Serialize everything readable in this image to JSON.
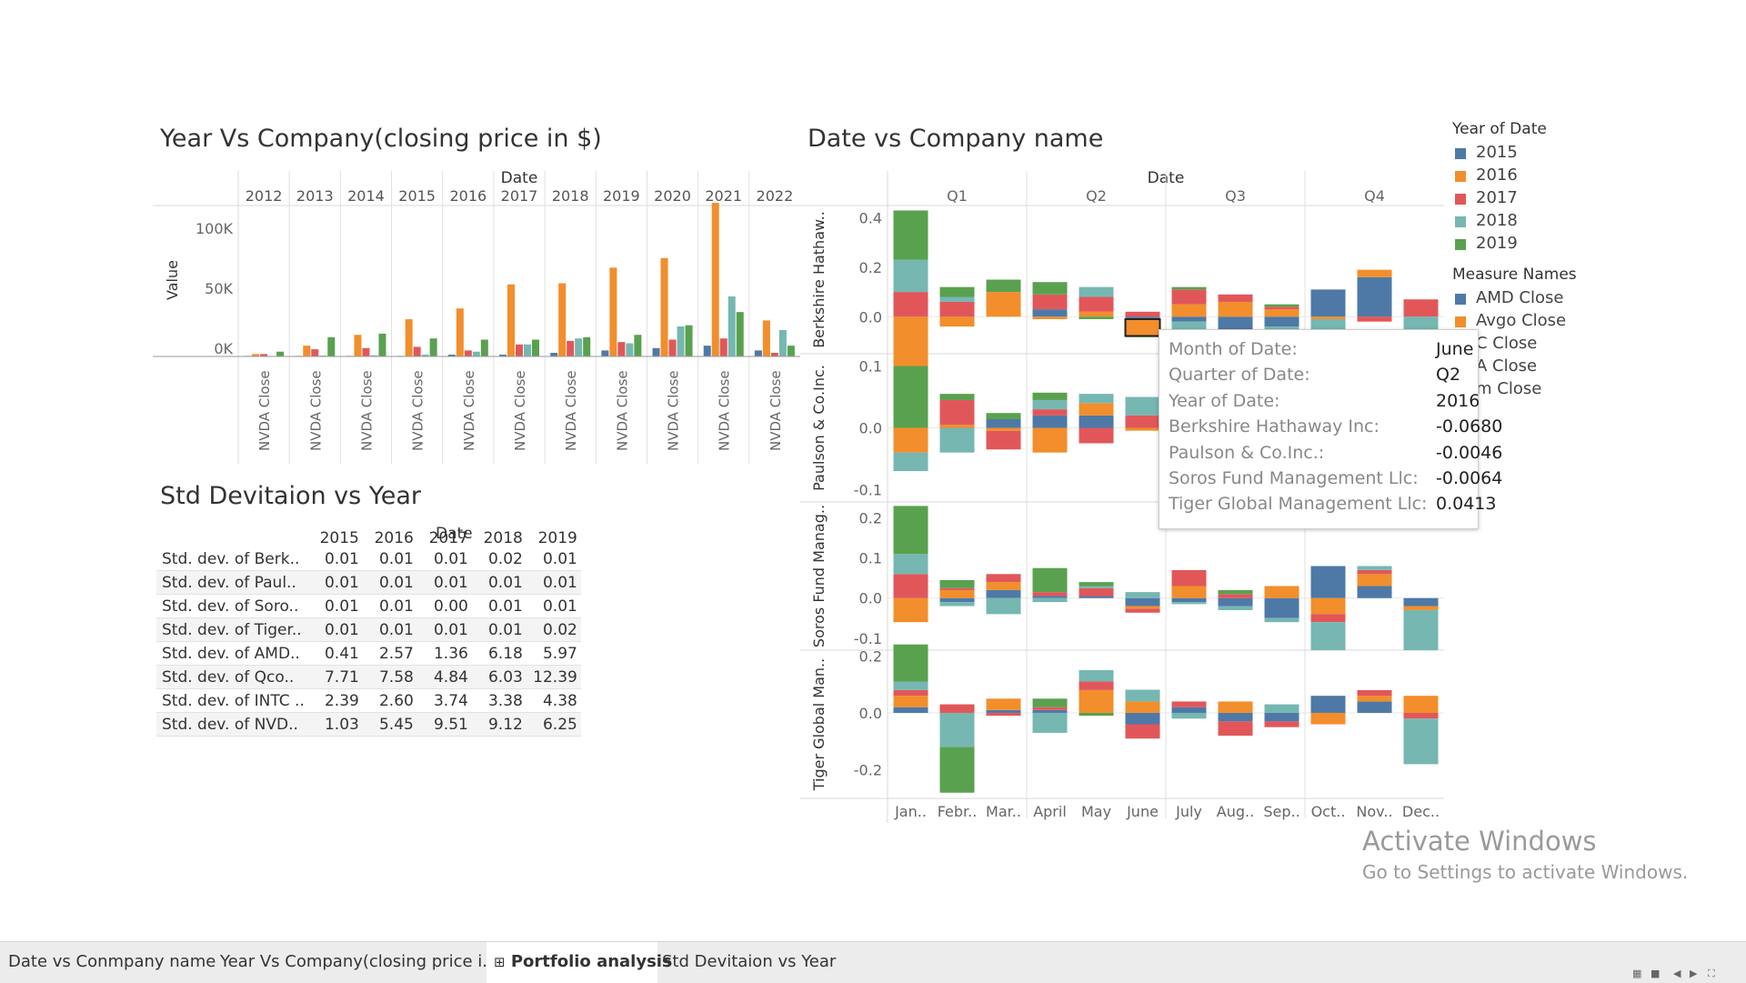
{
  "colors": {
    "y2015": "#4e79a7",
    "y2016": "#f28e2b",
    "y2017": "#e15759",
    "y2018": "#76b7b2",
    "y2019": "#59a14f",
    "amd": "#4e79a7",
    "avgo": "#f28e2b"
  },
  "left_chart": {
    "title": "Year Vs Company(closing price in $)",
    "col_header": "Date",
    "ylabel": "Value",
    "ticks": [
      "100K",
      "50K",
      "0K"
    ],
    "bar_label": "NVDA Close"
  },
  "right_chart": {
    "title": "Date vs Company name",
    "col_header": "Date"
  },
  "std_section": {
    "title": "Std Devitaion vs Year",
    "col_header": "Date"
  },
  "chart_data": [
    {
      "type": "bar",
      "title": "Year Vs Company(closing price in $)",
      "ylabel": "Value",
      "ylim": [
        0,
        130000
      ],
      "ytick_values": [
        0,
        50000,
        100000
      ],
      "categories": [
        "2012",
        "2013",
        "2014",
        "2015",
        "2016",
        "2017",
        "2018",
        "2019",
        "2020",
        "2021",
        "2022"
      ],
      "measures": [
        "AMD Close",
        "Avgo Close",
        "INTC Close",
        "NVDA Close",
        "Qcom Close"
      ],
      "series": [
        {
          "name": "AMD Close",
          "color": "#4e79a7",
          "values": [
            500,
            500,
            500,
            500,
            1500,
            1500,
            3000,
            5000,
            7000,
            9000,
            5000
          ]
        },
        {
          "name": "Avgo Close",
          "color": "#f28e2b",
          "values": [
            2000,
            9000,
            18000,
            31000,
            40000,
            60000,
            61000,
            74000,
            82000,
            128000,
            30000
          ]
        },
        {
          "name": "INTC Close",
          "color": "#e15759",
          "values": [
            2000,
            6000,
            7000,
            8000,
            5000,
            10000,
            13000,
            12000,
            14000,
            15000,
            3000
          ]
        },
        {
          "name": "NVDA Close",
          "color": "#76b7b2",
          "values": [
            400,
            800,
            1000,
            1500,
            4000,
            10000,
            15000,
            11000,
            25000,
            50000,
            22000
          ]
        },
        {
          "name": "Qcom Close",
          "color": "#59a14f",
          "values": [
            4000,
            16000,
            19000,
            15000,
            14000,
            14000,
            16000,
            18000,
            26000,
            37000,
            9000
          ]
        }
      ],
      "legend": "none",
      "grid": false
    },
    {
      "type": "table",
      "title": "Std Devitaion vs Year",
      "columns": [
        "2015",
        "2016",
        "2017",
        "2018",
        "2019"
      ],
      "rows": [
        {
          "label": "Std. dev. of Berk..",
          "values": [
            "0.01",
            "0.01",
            "0.01",
            "0.02",
            "0.01"
          ]
        },
        {
          "label": "Std. dev. of Paul..",
          "values": [
            "0.01",
            "0.01",
            "0.01",
            "0.01",
            "0.01"
          ]
        },
        {
          "label": "Std. dev. of Soro..",
          "values": [
            "0.01",
            "0.01",
            "0.00",
            "0.01",
            "0.01"
          ]
        },
        {
          "label": "Std. dev. of Tiger..",
          "values": [
            "0.01",
            "0.01",
            "0.01",
            "0.01",
            "0.02"
          ]
        },
        {
          "label": "Std. dev. of AMD..",
          "values": [
            "0.41",
            "2.57",
            "1.36",
            "6.18",
            "5.97"
          ]
        },
        {
          "label": "Std. dev. of Qco..",
          "values": [
            "7.71",
            "7.58",
            "4.84",
            "6.03",
            "12.39"
          ]
        },
        {
          "label": "Std. dev. of INTC ..",
          "values": [
            "2.39",
            "2.60",
            "3.74",
            "3.38",
            "4.38"
          ]
        },
        {
          "label": "Std. dev. of NVD..",
          "values": [
            "1.03",
            "5.45",
            "9.51",
            "9.12",
            "6.25"
          ]
        }
      ]
    },
    {
      "type": "bar",
      "title": "Date vs Company name",
      "quarters": [
        "Q1",
        "Q2",
        "Q3",
        "Q4"
      ],
      "categories": [
        "Jan..",
        "Febr..",
        "Mar..",
        "April",
        "May",
        "June",
        "July",
        "Aug..",
        "Sep..",
        "Oct..",
        "Nov..",
        "Dec.."
      ],
      "series_names": [
        "2015",
        "2016",
        "2017",
        "2018",
        "2019"
      ],
      "panels": [
        {
          "name": "Berkshire Hathaway Inc",
          "ylim": [
            -0.15,
            0.45
          ],
          "ticks": [
            "0.4",
            "0.2",
            "0.0"
          ],
          "tick_values": [
            0.4,
            0.2,
            0.0
          ],
          "values": [
            [
              0.0,
              -0.22,
              0.1,
              0.13,
              0.2
            ],
            [
              0.0,
              -0.04,
              0.06,
              0.02,
              0.04
            ],
            [
              0.0,
              0.1,
              0.0,
              0.0,
              0.05
            ],
            [
              0.03,
              -0.01,
              0.06,
              0.0,
              0.05
            ],
            [
              0.0,
              0.02,
              0.06,
              0.04,
              -0.01
            ],
            [
              -0.01,
              -0.068,
              0.02,
              0.0,
              -0.005
            ],
            [
              -0.02,
              0.05,
              0.06,
              -0.04,
              0.01
            ],
            [
              -0.08,
              0.06,
              0.03,
              -0.03,
              0.0
            ],
            [
              -0.04,
              0.03,
              0.01,
              -0.02,
              0.01
            ],
            [
              0.11,
              -0.01,
              0.0,
              -0.13,
              0.0
            ],
            [
              0.16,
              0.03,
              -0.02,
              0.0,
              0.0
            ],
            [
              0.0,
              0.0,
              0.07,
              -0.12,
              0.0
            ]
          ]
        },
        {
          "name": "Paulson & Co.Inc.",
          "ylim": [
            -0.12,
            0.12
          ],
          "ticks": [
            "0.1",
            "0.0",
            "-0.1"
          ],
          "tick_values": [
            0.1,
            0.0,
            -0.1
          ],
          "values": [
            [
              0.0,
              -0.04,
              0.0,
              -0.03,
              0.1
            ],
            [
              0.0,
              0.005,
              0.04,
              -0.04,
              0.01
            ],
            [
              0.014,
              -0.005,
              -0.03,
              0.0,
              0.01
            ],
            [
              0.02,
              -0.04,
              0.01,
              0.015,
              0.012
            ],
            [
              0.02,
              0.02,
              -0.025,
              0.015,
              0.0
            ],
            [
              0.0,
              -0.0046,
              0.02,
              0.03,
              0.0
            ],
            [
              0.0,
              0.0,
              0.0,
              0.0,
              0.0
            ],
            [
              0.0,
              0.0,
              0.0,
              0.0,
              0.0
            ],
            [
              0.0,
              0.0,
              0.0,
              0.0,
              0.0
            ],
            [
              0.0,
              0.0,
              0.0,
              0.0,
              0.0
            ],
            [
              0.0,
              0.0,
              0.0,
              0.0,
              0.0
            ],
            [
              0.0,
              0.0,
              0.0,
              0.0,
              0.0
            ]
          ]
        },
        {
          "name": "Soros Fund Management Llc",
          "ylim": [
            -0.13,
            0.24
          ],
          "ticks": [
            "0.2",
            "0.1",
            "0.0",
            "-0.1"
          ],
          "tick_values": [
            0.2,
            0.1,
            0.0,
            -0.1
          ],
          "values": [
            [
              0.0,
              -0.06,
              0.06,
              0.05,
              0.12
            ],
            [
              -0.01,
              0.02,
              0.005,
              -0.01,
              0.02
            ],
            [
              0.02,
              0.02,
              0.02,
              -0.04,
              0.0
            ],
            [
              0.005,
              0.0,
              0.01,
              -0.01,
              0.06
            ],
            [
              0.005,
              0.0,
              0.02,
              0.005,
              0.01
            ],
            [
              -0.02,
              -0.0064,
              -0.01,
              0.015,
              0.0
            ],
            [
              -0.01,
              0.03,
              0.04,
              -0.005,
              0.0
            ],
            [
              -0.02,
              0.0,
              0.01,
              -0.01,
              0.01
            ],
            [
              -0.05,
              0.03,
              0.0,
              -0.01,
              0.0
            ],
            [
              0.08,
              -0.04,
              -0.02,
              -0.07,
              0.0
            ],
            [
              0.03,
              0.03,
              0.01,
              0.01,
              0.0
            ],
            [
              -0.02,
              -0.01,
              0.0,
              -0.1,
              0.0
            ]
          ]
        },
        {
          "name": "Tiger Global Management Llc",
          "ylim": [
            -0.3,
            0.22
          ],
          "ticks": [
            "0.2",
            "0.0",
            "-0.2"
          ],
          "tick_values": [
            0.2,
            0.0,
            -0.2
          ],
          "values": [
            [
              0.02,
              0.04,
              0.02,
              0.03,
              0.13
            ],
            [
              0.0,
              0.0,
              0.03,
              -0.12,
              -0.16
            ],
            [
              0.01,
              0.04,
              -0.01,
              0.0,
              0.0
            ],
            [
              0.01,
              0.0,
              0.01,
              -0.07,
              0.03
            ],
            [
              0.0,
              0.08,
              0.03,
              0.04,
              -0.01
            ],
            [
              -0.04,
              0.04,
              -0.05,
              0.0413,
              0.0
            ],
            [
              0.02,
              0.0,
              0.02,
              -0.02,
              0.0
            ],
            [
              -0.03,
              0.04,
              -0.05,
              0.0,
              0.0
            ],
            [
              -0.03,
              0.0,
              -0.02,
              0.03,
              0.0
            ],
            [
              0.06,
              -0.04,
              0.0,
              0.0,
              0.0
            ],
            [
              0.04,
              0.02,
              0.02,
              0.0,
              0.0
            ],
            [
              0.0,
              0.06,
              -0.02,
              -0.16,
              0.0
            ]
          ]
        }
      ],
      "legend": "right"
    }
  ],
  "tooltip": [
    {
      "key": "Month of Date:",
      "value": "June"
    },
    {
      "key": "Quarter of Date:",
      "value": "Q2"
    },
    {
      "key": "Year of Date:",
      "value": "2016"
    },
    {
      "key": "Berkshire Hathaway Inc:",
      "value": "-0.0680"
    },
    {
      "key": "Paulson & Co.Inc.:",
      "value": "-0.0046"
    },
    {
      "key": "Soros Fund Management Llc:",
      "value": "-0.0064"
    },
    {
      "key": "Tiger Global Management Llc:",
      "value": "0.0413"
    }
  ],
  "legend_year": {
    "title": "Year of Date",
    "items": [
      {
        "label": "2015",
        "color": "#4e79a7"
      },
      {
        "label": "2016",
        "color": "#f28e2b"
      },
      {
        "label": "2017",
        "color": "#e15759"
      },
      {
        "label": "2018",
        "color": "#76b7b2"
      },
      {
        "label": "2019",
        "color": "#59a14f"
      }
    ]
  },
  "legend_measure": {
    "title": "Measure Names",
    "items": [
      {
        "label": "AMD Close",
        "color": "#4e79a7"
      },
      {
        "label": "Avgo Close",
        "color": "#f28e2b"
      },
      {
        "label": "C Close",
        "color": "#e15759"
      },
      {
        "label": "A Close",
        "color": "#76b7b2"
      },
      {
        "label": "m Close",
        "color": "#59a14f"
      }
    ]
  },
  "watermark": {
    "line1": "Activate Windows",
    "line2": "Go to Settings to activate Windows."
  },
  "tabs": [
    {
      "label": "Date vs Conmpany name",
      "active": false
    },
    {
      "label": "Year Vs Company(closing price i...",
      "active": false
    },
    {
      "label": "Portfolio analysis",
      "active": true,
      "icon": "grid-icon"
    },
    {
      "label": "Std Devitaion vs Year",
      "active": false
    }
  ],
  "nav_icons": [
    "grid-view-icon",
    "stop-icon",
    "prev-icon",
    "next-icon",
    "fullscreen-icon"
  ]
}
